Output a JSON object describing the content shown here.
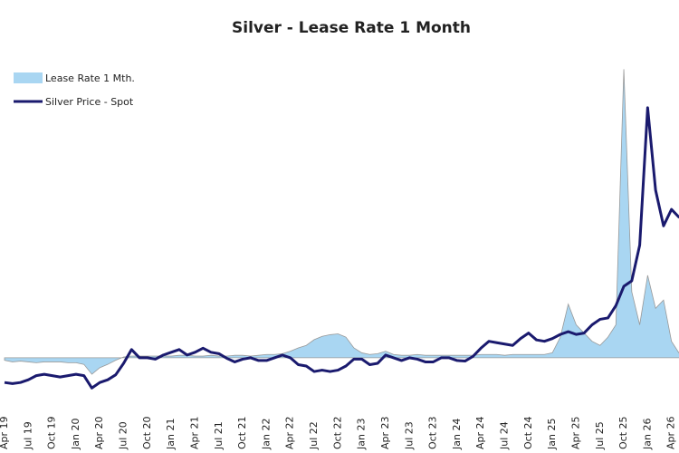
{
  "chart_data": {
    "type": "line",
    "title": "Silver - Lease Rate 1 Month",
    "categories": [
      "Apr 19",
      null,
      null,
      "Jul 19",
      null,
      null,
      "Oct 19",
      null,
      null,
      "Jan 20",
      null,
      null,
      "Apr 20",
      null,
      null,
      "Jul 20",
      null,
      null,
      "Oct 20",
      null,
      null,
      "Jan 21",
      null,
      null,
      "Apr 21",
      null,
      null,
      "Jul 21",
      null,
      null,
      "Oct 21",
      null,
      null,
      "Jan 22",
      null,
      null,
      "Apr 22",
      null,
      null,
      "Jul 22",
      null,
      null,
      "Oct 22",
      null,
      null,
      "Jan 23",
      null,
      null,
      "Apr 23",
      null,
      null,
      "Jul 23",
      null,
      null,
      "Oct 23",
      null,
      null,
      "Jan 24",
      null,
      null,
      "Apr 24",
      null,
      null,
      "Jul 24",
      null,
      null,
      "Oct 24",
      null,
      null,
      "Jan 25",
      null,
      null,
      "Apr 25",
      null,
      null,
      "Jul 25",
      null,
      null,
      "Oct 25",
      null,
      null,
      "Jan 26",
      null,
      null,
      "Apr 26",
      null
    ],
    "ylim": [
      -11,
      39
    ],
    "y2lim": [
      -9,
      141
    ],
    "series": [
      {
        "name": "Lease Rate 1 Mth.",
        "type": "area",
        "color": "#a9d6f2",
        "values": [
          -0.3,
          -0.5,
          -0.4,
          -0.5,
          -0.6,
          -0.5,
          -0.5,
          -0.5,
          -0.6,
          -0.6,
          -0.8,
          -2,
          -1.2,
          -0.8,
          -0.3,
          0.1,
          0.2,
          0.2,
          0.2,
          0.2,
          0.2,
          0.2,
          0.3,
          0.3,
          0.2,
          0.2,
          0.3,
          0.2,
          0.2,
          0.3,
          0.3,
          0.2,
          0.3,
          0.4,
          0.4,
          0.5,
          0.8,
          1.2,
          1.5,
          2.2,
          2.6,
          2.8,
          2.9,
          2.5,
          1.2,
          0.6,
          0.4,
          0.5,
          0.8,
          0.4,
          0.3,
          0.3,
          0.4,
          0.3,
          0.3,
          0.3,
          0.3,
          0.3,
          0.3,
          0.3,
          0.4,
          0.4,
          0.4,
          0.3,
          0.4,
          0.4,
          0.4,
          0.4,
          0.4,
          0.6,
          2.5,
          6.5,
          4,
          3,
          2,
          1.5,
          2.5,
          4,
          35,
          8,
          4,
          10,
          6,
          7,
          2,
          0.5
        ]
      },
      {
        "name": "Silver Price - Spot",
        "type": "line",
        "axis": "y2",
        "color": "#1a1a6e",
        "values": [
          15,
          14.6,
          15,
          16,
          17.5,
          18,
          17.5,
          17,
          17.5,
          18,
          17.5,
          13,
          15,
          16,
          17.8,
          22,
          27,
          24,
          24,
          23.5,
          25,
          26,
          27,
          25,
          26,
          27.5,
          26,
          25.5,
          23.8,
          22.5,
          23.5,
          24,
          23,
          23,
          24,
          25,
          24,
          21.5,
          21,
          19,
          19.5,
          19,
          19.5,
          21,
          23.5,
          23.5,
          21.5,
          22,
          25,
          24,
          23,
          24,
          23.5,
          22.5,
          22.5,
          24,
          24,
          23,
          22.8,
          24.5,
          27.5,
          30,
          29.5,
          29,
          28.5,
          31,
          33,
          30.5,
          30,
          31,
          32.5,
          33.5,
          32.5,
          33,
          36,
          38,
          38.5,
          43,
          50,
          52,
          65,
          115,
          85,
          72,
          78,
          75
        ]
      }
    ]
  }
}
